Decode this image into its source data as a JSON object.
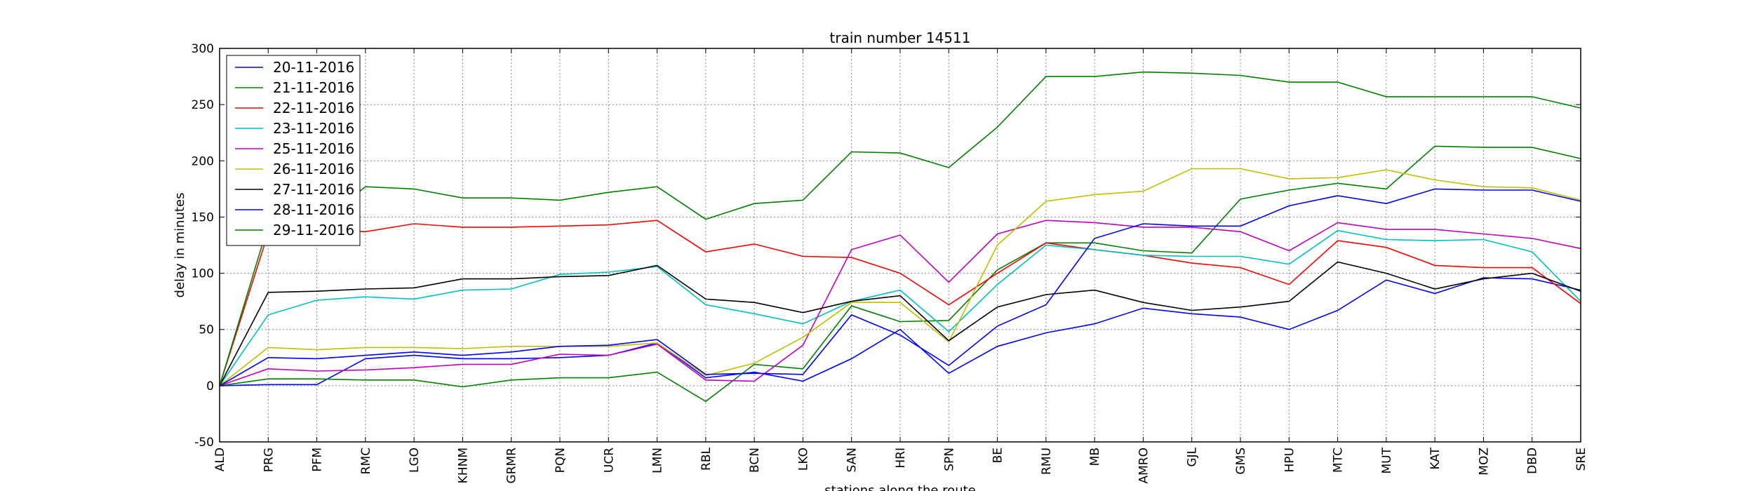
{
  "chart_data": {
    "type": "line",
    "title": "train number 14511",
    "xlabel": "stations along the route",
    "ylabel": "delay in minutes",
    "ylim": [
      -50,
      300
    ],
    "yticks": [
      -50,
      0,
      50,
      100,
      150,
      200,
      250,
      300
    ],
    "grid": true,
    "legend_position": "top-left",
    "categories": [
      "ALD",
      "PRG",
      "PFM",
      "RMC",
      "LGO",
      "KHNM",
      "GRMR",
      "PQN",
      "UCR",
      "LMN",
      "RBL",
      "BCN",
      "LKO",
      "SAN",
      "HRI",
      "SPN",
      "BE",
      "RMU",
      "MB",
      "AMRO",
      "GJL",
      "GMS",
      "HPU",
      "MTC",
      "MUT",
      "KAT",
      "MOZ",
      "DBD",
      "SRE"
    ],
    "series": [
      {
        "name": "20-11-2016",
        "color": "#0000ff",
        "values": [
          0,
          1,
          1,
          24,
          27,
          24,
          24,
          25,
          27,
          38,
          7,
          12,
          4,
          24,
          50,
          11,
          35,
          47,
          55,
          69,
          64,
          61,
          50,
          67,
          94,
          82,
          96,
          95,
          85
        ]
      },
      {
        "name": "21-11-2016",
        "color": "#008000",
        "values": [
          0,
          6,
          6,
          5,
          5,
          -1,
          5,
          7,
          7,
          12,
          -14,
          19,
          15,
          71,
          57,
          58,
          103,
          127,
          127,
          120,
          118,
          166,
          174,
          180,
          175,
          213,
          212,
          212,
          202
        ]
      },
      {
        "name": "22-11-2016",
        "color": "#ff0000",
        "values": [
          0,
          136,
          138,
          137,
          144,
          141,
          141,
          142,
          143,
          147,
          119,
          126,
          115,
          114,
          100,
          72,
          100,
          127,
          121,
          116,
          109,
          105,
          90,
          129,
          123,
          107,
          105,
          105,
          73
        ]
      },
      {
        "name": "23-11-2016",
        "color": "#00bfbf",
        "values": [
          0,
          63,
          76,
          79,
          77,
          85,
          86,
          99,
          101,
          106,
          72,
          64,
          55,
          75,
          85,
          48,
          90,
          125,
          121,
          116,
          115,
          115,
          108,
          138,
          130,
          129,
          130,
          119,
          75
        ]
      },
      {
        "name": "25-11-2016",
        "color": "#bf00bf",
        "values": [
          0,
          15,
          13,
          14,
          16,
          19,
          19,
          28,
          27,
          37,
          5,
          4,
          36,
          121,
          134,
          92,
          135,
          147,
          145,
          141,
          141,
          137,
          120,
          145,
          139,
          139,
          135,
          131,
          122
        ]
      },
      {
        "name": "26-11-2016",
        "color": "#bfbf00",
        "values": [
          0,
          34,
          32,
          34,
          34,
          33,
          35,
          35,
          35,
          38,
          9,
          20,
          43,
          74,
          74,
          39,
          125,
          164,
          170,
          173,
          193,
          193,
          184,
          185,
          192,
          183,
          177,
          176,
          165
        ]
      },
      {
        "name": "27-11-2016",
        "color": "#000000",
        "values": [
          0,
          83,
          84,
          86,
          87,
          95,
          95,
          97,
          98,
          107,
          77,
          74,
          65,
          75,
          80,
          40,
          70,
          81,
          85,
          74,
          67,
          70,
          75,
          110,
          100,
          86,
          95,
          100,
          84
        ]
      },
      {
        "name": "28-11-2016",
        "color": "#0000ff",
        "values": [
          0,
          25,
          24,
          27,
          30,
          27,
          30,
          35,
          36,
          41,
          10,
          11,
          10,
          63,
          45,
          18,
          53,
          72,
          131,
          144,
          142,
          142,
          160,
          169,
          162,
          175,
          174,
          174,
          164
        ]
      },
      {
        "name": "29-11-2016",
        "color": "#008000",
        "values": [
          0,
          143,
          143,
          177,
          175,
          167,
          167,
          165,
          172,
          177,
          148,
          162,
          165,
          208,
          207,
          194,
          230,
          275,
          275,
          279,
          278,
          276,
          270,
          270,
          257,
          257,
          257,
          257,
          247
        ]
      }
    ]
  }
}
